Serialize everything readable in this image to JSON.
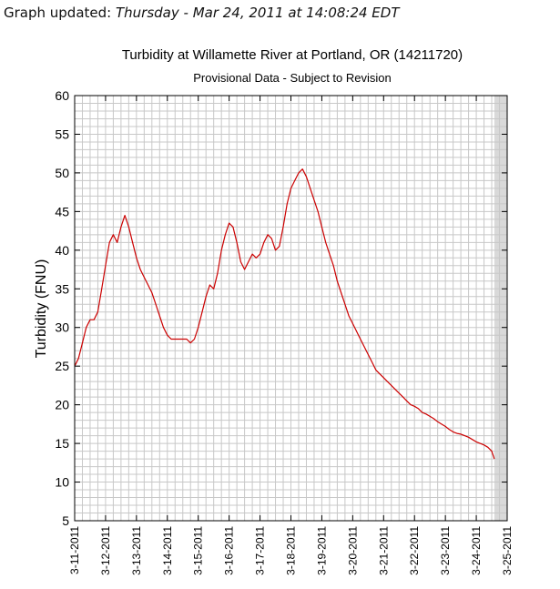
{
  "header": {
    "label": "Graph updated:",
    "timestamp": "Thursday - Mar 24, 2011 at 14:08:24 EDT"
  },
  "colors": {
    "series": "#cc0000",
    "grid": "#c8c8c8",
    "shaded": "#d9d9d9",
    "axis": "#000000"
  },
  "chart_data": {
    "type": "line",
    "title": "Turbidity at Willamette River at Portland, OR (14211720)",
    "subtitle": "Provisional Data - Subject to Revision",
    "ylabel": "Turbidity (FNU)",
    "xlabel": "",
    "ylim": [
      5,
      60
    ],
    "xlim": [
      "2011-03-11",
      "2011-03-25"
    ],
    "grid": true,
    "yticks": [
      "5",
      "10",
      "15",
      "20",
      "25",
      "30",
      "35",
      "40",
      "45",
      "50",
      "55",
      "60"
    ],
    "xticks": [
      "3-11-2011",
      "3-12-2011",
      "3-13-2011",
      "3-14-2011",
      "3-15-2011",
      "3-16-2011",
      "3-17-2011",
      "3-18-2011",
      "3-19-2011",
      "3-20-2011",
      "3-21-2011",
      "3-22-2011",
      "3-23-2011",
      "3-24-2011",
      "3-25-2011"
    ],
    "shaded_region": [
      "2011-03-24 14:00",
      "2011-03-25"
    ],
    "series": [
      {
        "x": [
          "2011-03-11 00:00",
          "2011-03-11 03:00",
          "2011-03-11 06:00",
          "2011-03-11 09:00",
          "2011-03-11 12:00",
          "2011-03-11 15:00",
          "2011-03-11 18:00",
          "2011-03-11 21:00",
          "2011-03-12 00:00",
          "2011-03-12 03:00",
          "2011-03-12 06:00",
          "2011-03-12 09:00",
          "2011-03-12 12:00",
          "2011-03-12 15:00",
          "2011-03-12 18:00",
          "2011-03-12 21:00",
          "2011-03-13 00:00",
          "2011-03-13 03:00",
          "2011-03-13 06:00",
          "2011-03-13 09:00",
          "2011-03-13 12:00",
          "2011-03-13 15:00",
          "2011-03-13 18:00",
          "2011-03-13 21:00",
          "2011-03-14 00:00",
          "2011-03-14 03:00",
          "2011-03-14 06:00",
          "2011-03-14 09:00",
          "2011-03-14 12:00",
          "2011-03-14 15:00",
          "2011-03-14 18:00",
          "2011-03-14 21:00",
          "2011-03-15 00:00",
          "2011-03-15 03:00",
          "2011-03-15 06:00",
          "2011-03-15 09:00",
          "2011-03-15 12:00",
          "2011-03-15 15:00",
          "2011-03-15 18:00",
          "2011-03-15 21:00",
          "2011-03-16 00:00",
          "2011-03-16 03:00",
          "2011-03-16 06:00",
          "2011-03-16 09:00",
          "2011-03-16 12:00",
          "2011-03-16 15:00",
          "2011-03-16 18:00",
          "2011-03-16 21:00",
          "2011-03-17 00:00",
          "2011-03-17 03:00",
          "2011-03-17 06:00",
          "2011-03-17 09:00",
          "2011-03-17 12:00",
          "2011-03-17 15:00",
          "2011-03-17 18:00",
          "2011-03-17 21:00",
          "2011-03-18 00:00",
          "2011-03-18 03:00",
          "2011-03-18 06:00",
          "2011-03-18 09:00",
          "2011-03-18 12:00",
          "2011-03-18 15:00",
          "2011-03-18 18:00",
          "2011-03-18 21:00",
          "2011-03-19 00:00",
          "2011-03-19 03:00",
          "2011-03-19 06:00",
          "2011-03-19 09:00",
          "2011-03-19 12:00",
          "2011-03-19 15:00",
          "2011-03-19 18:00",
          "2011-03-19 21:00",
          "2011-03-20 00:00",
          "2011-03-20 03:00",
          "2011-03-20 06:00",
          "2011-03-20 09:00",
          "2011-03-20 12:00",
          "2011-03-20 15:00",
          "2011-03-20 18:00",
          "2011-03-20 21:00",
          "2011-03-21 00:00",
          "2011-03-21 03:00",
          "2011-03-21 06:00",
          "2011-03-21 09:00",
          "2011-03-21 12:00",
          "2011-03-21 15:00",
          "2011-03-21 18:00",
          "2011-03-21 21:00",
          "2011-03-22 00:00",
          "2011-03-22 03:00",
          "2011-03-22 06:00",
          "2011-03-22 09:00",
          "2011-03-22 12:00",
          "2011-03-22 15:00",
          "2011-03-22 18:00",
          "2011-03-22 21:00",
          "2011-03-23 00:00",
          "2011-03-23 03:00",
          "2011-03-23 06:00",
          "2011-03-23 09:00",
          "2011-03-23 12:00",
          "2011-03-23 15:00",
          "2011-03-23 18:00",
          "2011-03-23 21:00",
          "2011-03-24 00:00",
          "2011-03-24 03:00",
          "2011-03-24 06:00",
          "2011-03-24 09:00",
          "2011-03-24 12:00",
          "2011-03-24 14:00"
        ],
        "y": [
          25,
          26,
          28,
          30,
          31,
          31,
          32,
          35,
          38,
          41,
          42,
          41,
          43,
          44.5,
          43,
          41,
          39,
          37.5,
          36.5,
          35.5,
          34.5,
          33,
          31.5,
          30,
          29,
          28.5,
          28.5,
          28.5,
          28.5,
          28.5,
          28,
          28.5,
          30,
          32,
          34,
          35.5,
          35,
          37,
          40,
          42,
          43.5,
          43,
          41,
          38.5,
          37.5,
          38.5,
          39.5,
          39,
          39.5,
          41,
          42,
          41.5,
          40,
          40.5,
          43,
          46,
          48,
          49,
          50,
          50.5,
          49.5,
          48,
          46.5,
          45,
          43,
          41,
          39.5,
          38,
          36,
          34.5,
          33,
          31.5,
          30.5,
          29.5,
          28.5,
          27.5,
          26.5,
          25.5,
          24.5,
          24,
          23.5,
          23,
          22.5,
          22,
          21.5,
          21,
          20.5,
          20,
          19.8,
          19.5,
          19,
          18.8,
          18.5,
          18.2,
          17.8,
          17.5,
          17.2,
          16.8,
          16.5,
          16.3,
          16.2,
          16,
          15.8,
          15.5,
          15.2,
          15,
          14.8,
          14.5,
          14,
          13
        ]
      }
    ]
  }
}
